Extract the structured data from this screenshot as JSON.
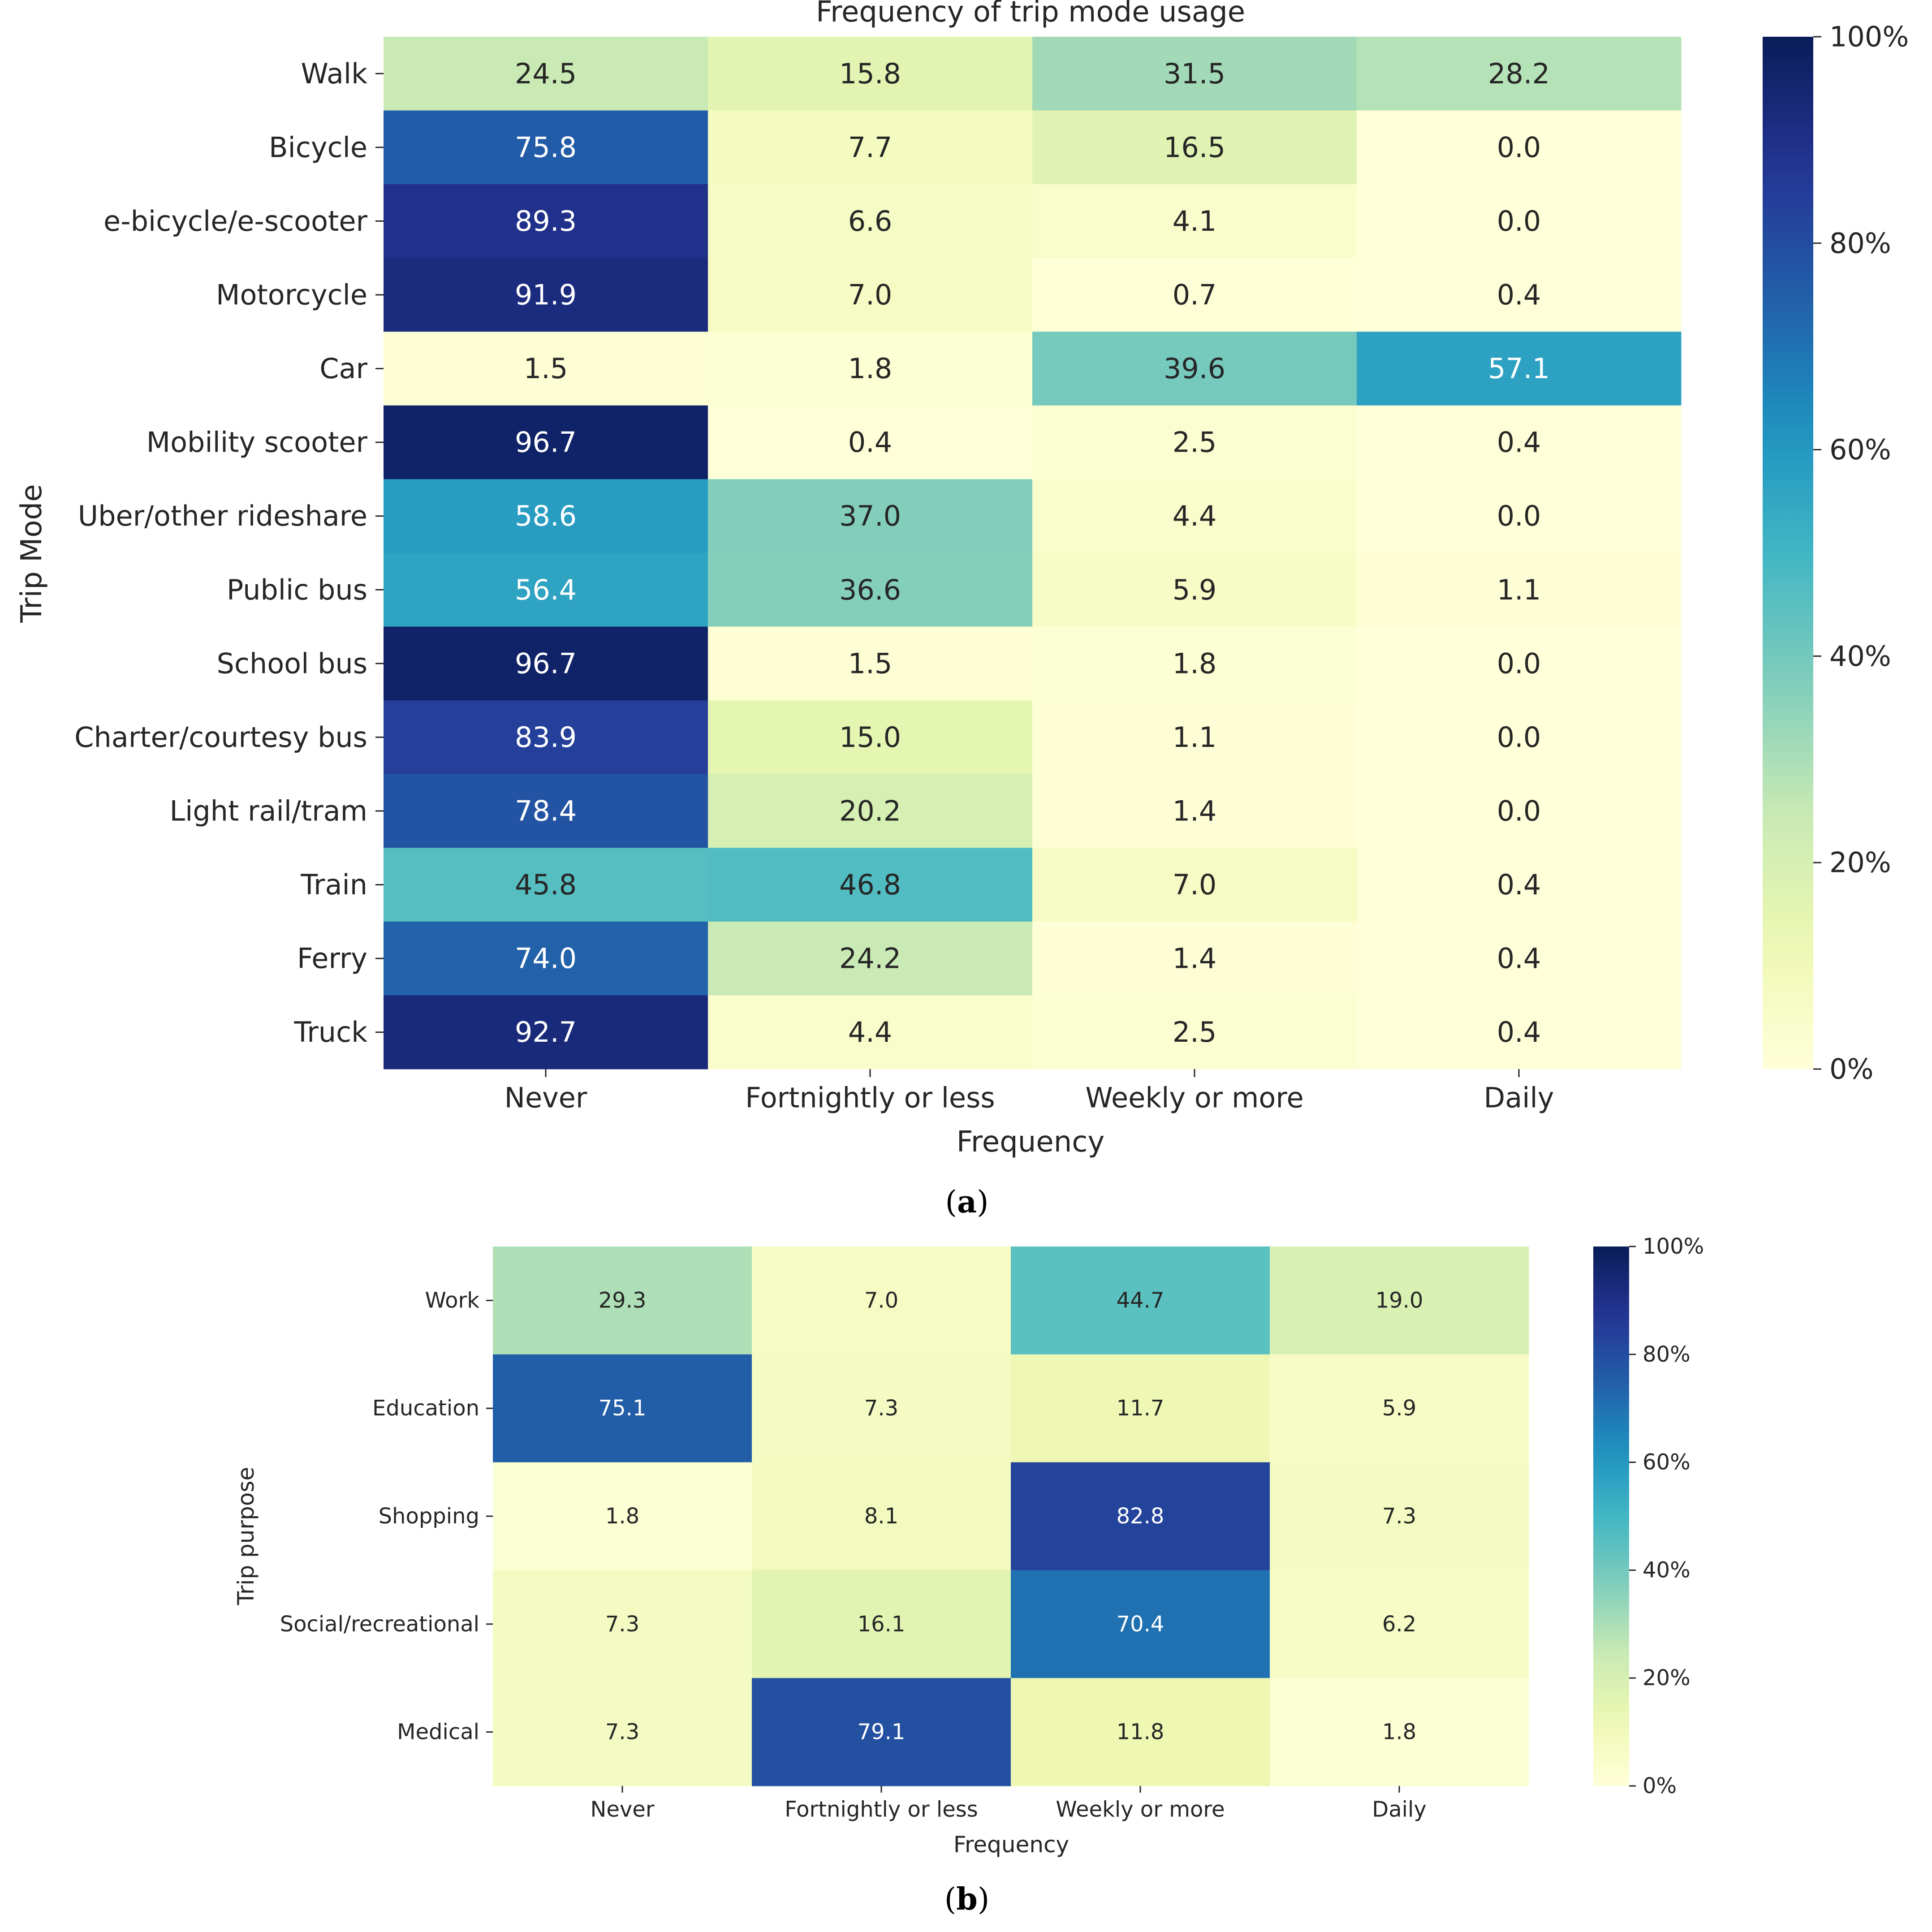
{
  "chart_data": [
    {
      "type": "heatmap",
      "panel_label": "a",
      "title": "Frequency of trip mode usage",
      "xlabel": "Frequency",
      "ylabel": "Trip Mode",
      "columns": [
        "Never",
        "Fortnightly or less",
        "Weekly or more",
        "Daily"
      ],
      "rows": [
        "Walk",
        "Bicycle",
        "e-bicycle/e-scooter",
        "Motorcycle",
        "Car",
        "Mobility scooter",
        "Uber/other rideshare",
        "Public bus",
        "School bus",
        "Charter/courtesy bus",
        "Light rail/tram",
        "Train",
        "Ferry",
        "Truck"
      ],
      "values": [
        [
          24.5,
          15.8,
          31.5,
          28.2
        ],
        [
          75.8,
          7.7,
          16.5,
          0.0
        ],
        [
          89.3,
          6.6,
          4.1,
          0.0
        ],
        [
          91.9,
          7.0,
          0.7,
          0.4
        ],
        [
          1.5,
          1.8,
          39.6,
          57.1
        ],
        [
          96.7,
          0.4,
          2.5,
          0.4
        ],
        [
          58.6,
          37.0,
          4.4,
          0.0
        ],
        [
          56.4,
          36.6,
          5.9,
          1.1
        ],
        [
          96.7,
          1.5,
          1.8,
          0.0
        ],
        [
          83.9,
          15.0,
          1.1,
          0.0
        ],
        [
          78.4,
          20.2,
          1.4,
          0.0
        ],
        [
          45.8,
          46.8,
          7.0,
          0.4
        ],
        [
          74.0,
          24.2,
          1.4,
          0.4
        ],
        [
          92.7,
          4.4,
          2.5,
          0.4
        ]
      ],
      "value_format": "one_decimal",
      "colormap": "YlGnBu",
      "colorbar_range": [
        0,
        100
      ],
      "colorbar_ticks": [
        "0%",
        "20%",
        "40%",
        "60%",
        "80%",
        "100%"
      ]
    },
    {
      "type": "heatmap",
      "panel_label": "b",
      "title": "",
      "xlabel": "Frequency",
      "ylabel": "Trip purpose",
      "columns": [
        "Never",
        "Fortnightly or less",
        "Weekly or more",
        "Daily"
      ],
      "rows": [
        "Work",
        "Education",
        "Shopping",
        "Social/recreational",
        "Medical"
      ],
      "values": [
        [
          29.3,
          7.0,
          44.7,
          19.0
        ],
        [
          75.1,
          7.3,
          11.7,
          5.9
        ],
        [
          1.8,
          8.1,
          82.8,
          7.3
        ],
        [
          7.3,
          16.1,
          70.4,
          6.2
        ],
        [
          7.3,
          79.1,
          11.8,
          1.8
        ]
      ],
      "value_format": "one_decimal",
      "colormap": "YlGnBu",
      "colorbar_range": [
        0,
        100
      ],
      "colorbar_ticks": [
        "0%",
        "20%",
        "40%",
        "60%",
        "80%",
        "100%"
      ]
    }
  ],
  "captions": {
    "a": "a",
    "b": "b"
  },
  "colors": {
    "ylgnbu": [
      "#ffffd9",
      "#edf8b1",
      "#c7e9b4",
      "#7fcdbb",
      "#41b6c4",
      "#1d91c0",
      "#225ea8",
      "#253494",
      "#081d58"
    ],
    "text_dark": "#262626",
    "text_light": "#ffffff",
    "axis": "#262626"
  }
}
